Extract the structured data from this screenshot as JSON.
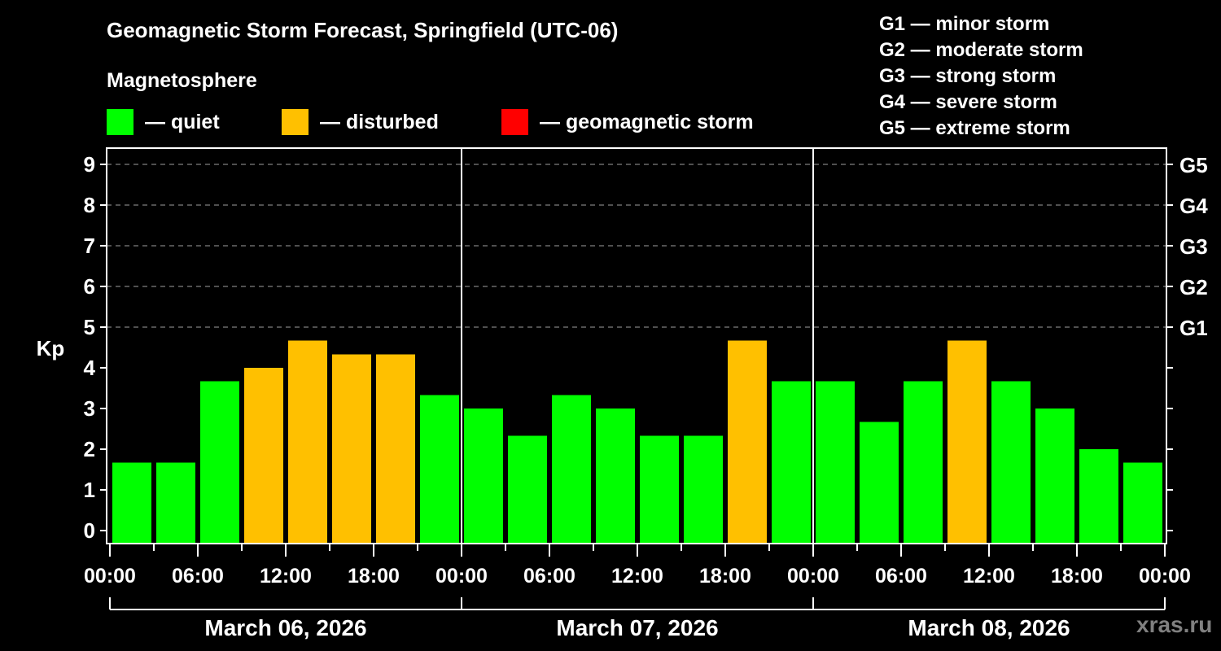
{
  "header": {
    "title": "Geomagnetic Storm Forecast, Springfield (UTC-06)",
    "section_label": "Magnetosphere"
  },
  "legend": [
    {
      "label": "— quiet",
      "color": "#00ff00"
    },
    {
      "label": "— disturbed",
      "color": "#ffc000"
    },
    {
      "label": "— geomagnetic storm",
      "color": "#ff0000"
    }
  ],
  "g_scale": [
    {
      "level": "G1",
      "label": "G1 — minor storm"
    },
    {
      "level": "G2",
      "label": "G2 — moderate storm"
    },
    {
      "level": "G3",
      "label": "G3 — strong storm"
    },
    {
      "level": "G4",
      "label": "G4 — severe storm"
    },
    {
      "level": "G5",
      "label": "G5 — extreme storm"
    }
  ],
  "watermark": "xras.ru",
  "chart_data": {
    "type": "bar",
    "title": "Geomagnetic Storm Forecast, Springfield (UTC-06)",
    "xlabel": "",
    "ylabel": "Kp",
    "ylim": [
      -0.33,
      9.6
    ],
    "yticks": [
      0,
      1,
      2,
      3,
      4,
      5,
      6,
      7,
      8,
      9
    ],
    "right_axis_labels": {
      "5": "G1",
      "6": "G2",
      "7": "G3",
      "8": "G4",
      "9": "G5"
    },
    "grid": "dashed horizontal at Kp 5-9",
    "x_tick_labels": [
      "00:00",
      "06:00",
      "12:00",
      "18:00",
      "00:00",
      "06:00",
      "12:00",
      "18:00",
      "00:00",
      "06:00",
      "12:00",
      "18:00",
      "00:00"
    ],
    "days": [
      "March 06, 2026",
      "March 07, 2026",
      "March 08, 2026"
    ],
    "interval_hours": 3,
    "categories": [
      "Mar 06 00-03",
      "Mar 06 03-06",
      "Mar 06 06-09",
      "Mar 06 09-12",
      "Mar 06 12-15",
      "Mar 06 15-18",
      "Mar 06 18-21",
      "Mar 06 21-24",
      "Mar 07 00-03",
      "Mar 07 03-06",
      "Mar 07 06-09",
      "Mar 07 09-12",
      "Mar 07 12-15",
      "Mar 07 15-18",
      "Mar 07 18-21",
      "Mar 07 21-24",
      "Mar 08 00-03",
      "Mar 08 03-06",
      "Mar 08 06-09",
      "Mar 08 09-12",
      "Mar 08 12-15",
      "Mar 08 15-18",
      "Mar 08 18-21",
      "Mar 08 21-24"
    ],
    "values": [
      1.67,
      1.67,
      3.67,
      4.0,
      4.67,
      4.33,
      4.33,
      3.33,
      3.0,
      2.33,
      3.33,
      3.0,
      2.33,
      2.33,
      4.67,
      3.67,
      3.67,
      2.67,
      3.67,
      4.67,
      3.67,
      3.0,
      2.0,
      1.67
    ],
    "status": [
      "quiet",
      "quiet",
      "quiet",
      "disturbed",
      "disturbed",
      "disturbed",
      "disturbed",
      "quiet",
      "quiet",
      "quiet",
      "quiet",
      "quiet",
      "quiet",
      "quiet",
      "disturbed",
      "quiet",
      "quiet",
      "quiet",
      "quiet",
      "disturbed",
      "quiet",
      "quiet",
      "quiet",
      "quiet"
    ],
    "status_colors": {
      "quiet": "#00ff00",
      "disturbed": "#ffc000",
      "storm": "#ff0000"
    },
    "legend_position": "top"
  }
}
